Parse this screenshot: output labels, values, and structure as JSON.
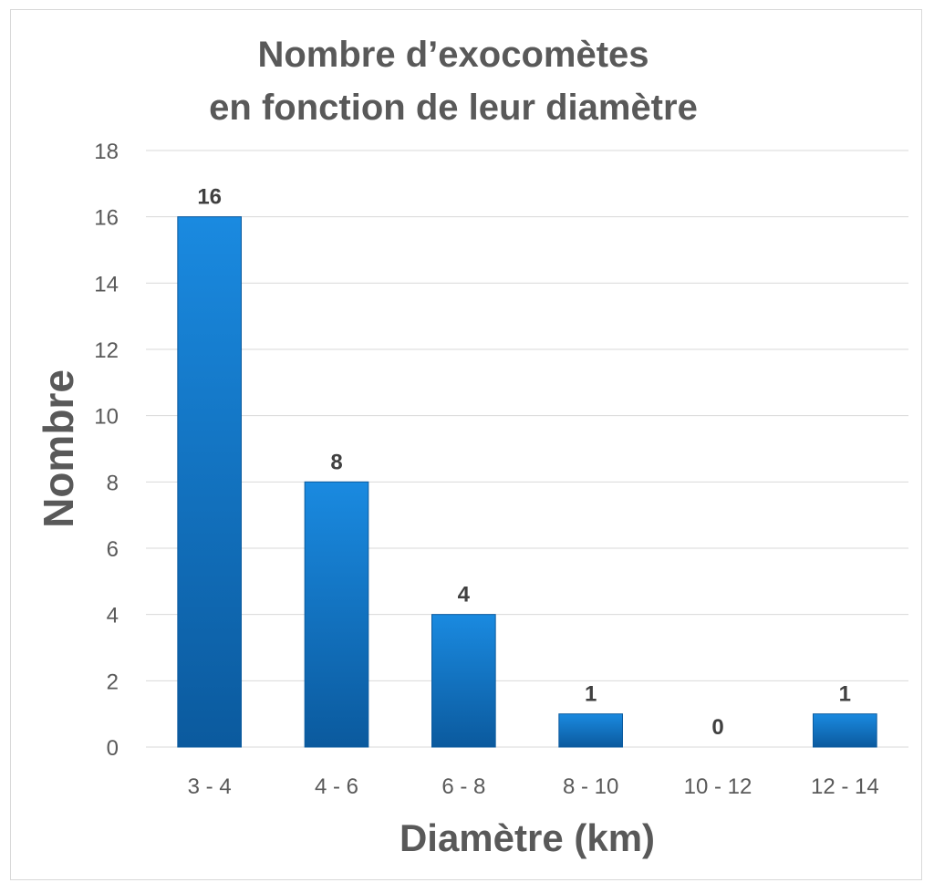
{
  "chart_data": {
    "type": "bar",
    "title_line1": "Nombre d’exocomètes",
    "title_line2": "en fonction de leur diamètre",
    "xlabel": "Diamètre (km)",
    "ylabel": "Nombre",
    "categories": [
      "3 - 4",
      "4 - 6",
      "6 - 8",
      "8 - 10",
      "10 - 12",
      "12 - 14"
    ],
    "values": [
      16,
      8,
      4,
      1,
      0,
      1
    ],
    "ylim": [
      0,
      18
    ],
    "yticks": [
      0,
      2,
      4,
      6,
      8,
      10,
      12,
      14,
      16,
      18
    ],
    "grid": true,
    "legend": "none",
    "bar_color": "#0a70c4",
    "bar_color_light": "#1a8ae0",
    "bar_color_dark": "#0b5a9e"
  }
}
